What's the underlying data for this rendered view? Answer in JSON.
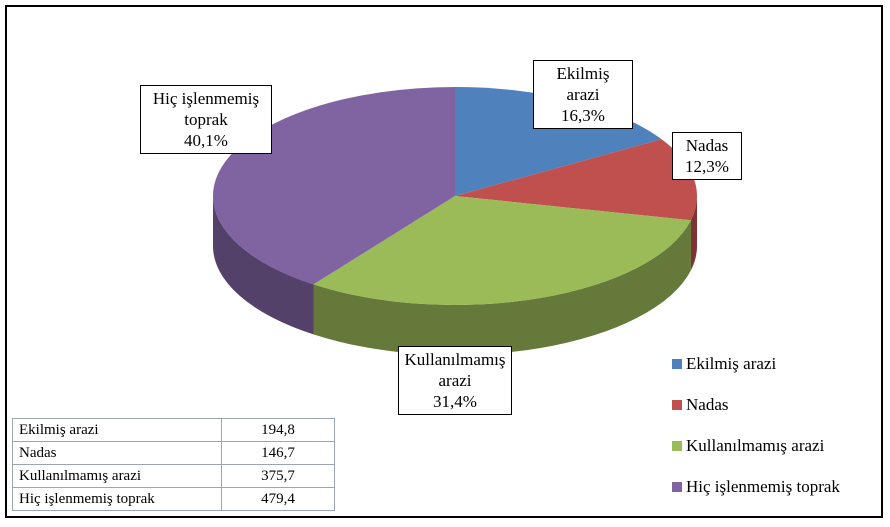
{
  "chart_data": {
    "type": "pie",
    "categories": [
      "Ekilmiş arazi",
      "Nadas",
      "Kullanılmamış arazi",
      "Hiç işlenmemiş toprak"
    ],
    "values": [
      16.3,
      12.3,
      31.4,
      40.1
    ],
    "value_labels": [
      "16,3%",
      "12,3%",
      "31,4%",
      "40,1%"
    ],
    "colors": [
      "#4f81bd",
      "#c0504d",
      "#9bbb59",
      "#8064a2"
    ],
    "legend": "bottom-right"
  },
  "table": {
    "rows": [
      [
        "Ekilmiş arazi",
        "194,8"
      ],
      [
        "Nadas",
        "146,7"
      ],
      [
        "Kullanılmamış arazi",
        "375,7"
      ],
      [
        "Hiç işlenmemiş toprak",
        "479,4"
      ]
    ]
  }
}
